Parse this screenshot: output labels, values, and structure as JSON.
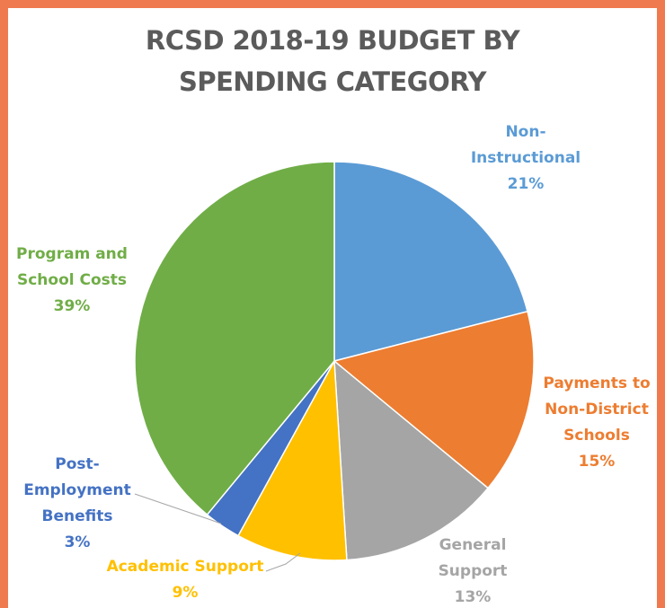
{
  "chart_data": {
    "type": "pie",
    "title": "RCSD 2018-19 BUDGET BY SPENDING CATEGORY",
    "title_lines": [
      "RCSD 2018-19 BUDGET BY",
      "SPENDING CATEGORY"
    ],
    "slices": [
      {
        "label": "Non-Instructional",
        "label_lines": [
          "Non-",
          "Instructional"
        ],
        "value": 21,
        "value_label": "21%",
        "color": "#5B9BD5"
      },
      {
        "label": "Payments to Non-District Schools",
        "label_lines": [
          "Payments to",
          "Non-District",
          "Schools"
        ],
        "value": 15,
        "value_label": "15%",
        "color": "#ED7D31"
      },
      {
        "label": "General Support",
        "label_lines": [
          "General",
          "Support"
        ],
        "value": 13,
        "value_label": "13%",
        "color": "#A5A5A5"
      },
      {
        "label": "Academic Support",
        "label_lines": [
          "Academic Support"
        ],
        "value": 9,
        "value_label": "9%",
        "color": "#FFC000"
      },
      {
        "label": "Post-Employment Benefits",
        "label_lines": [
          "Post-",
          "Employment",
          "Benefits"
        ],
        "value": 3,
        "value_label": "3%",
        "color": "#4472C4"
      },
      {
        "label": "Program and School Costs",
        "label_lines": [
          "Program and",
          "School Costs"
        ],
        "value": 39,
        "value_label": "39%",
        "color": "#70AD47"
      }
    ],
    "legend": "none",
    "data_labels": "outside"
  },
  "colors": {
    "background": "#FFFFFF",
    "border": "#F07A50",
    "title": "#5B5B5B"
  }
}
